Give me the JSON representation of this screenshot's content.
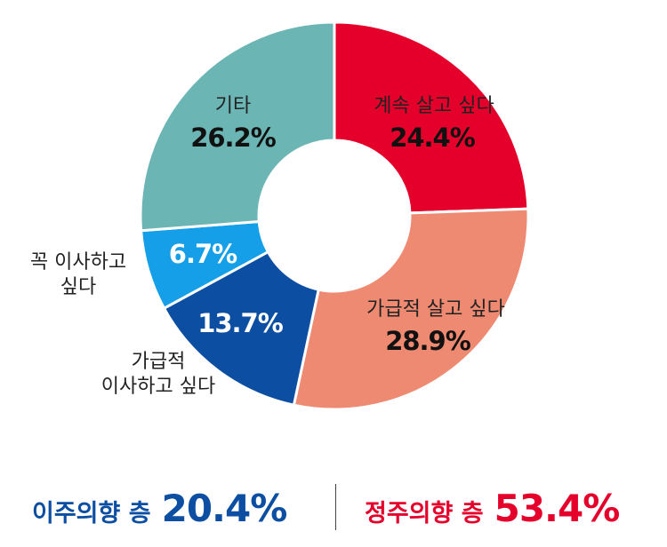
{
  "chart_data": {
    "type": "pie",
    "donut": true,
    "slices": [
      {
        "category": "계속 살고 싶다",
        "value": 24.4,
        "label": "24.4%",
        "color": "#e5002b"
      },
      {
        "category": "가급적 살고 싶다",
        "value": 28.9,
        "label": "28.9%",
        "color": "#ef8a72"
      },
      {
        "category": "가급적 이사하고 싶다",
        "value": 13.7,
        "label": "13.7%",
        "color": "#0b4ea2"
      },
      {
        "category": "꼭 이사하고 싶다",
        "value": 6.7,
        "label": "6.7%",
        "color": "#149fe8"
      },
      {
        "category": "기타",
        "value": 26.2,
        "label": "26.2%",
        "color": "#6bb5b5"
      }
    ]
  },
  "summary": {
    "left": {
      "label": "이주의향 층",
      "value": "20.4%",
      "color": "#0b4ea2"
    },
    "right": {
      "label": "정주의향 층",
      "value": "53.4%",
      "color": "#e4002b"
    }
  }
}
